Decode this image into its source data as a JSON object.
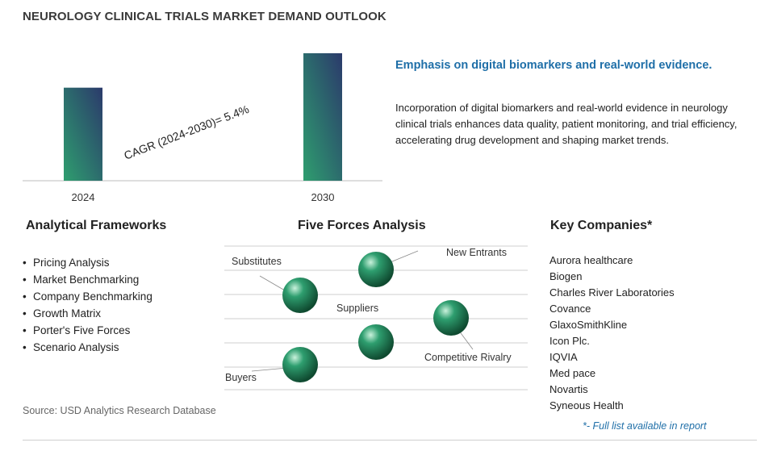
{
  "page": {
    "title": "NEUROLOGY CLINICAL TRIALS MARKET DEMAND OUTLOOK",
    "source": "Source: USD Analytics Research Database"
  },
  "chart_data": {
    "type": "bar",
    "categories": [
      "2024",
      "2030"
    ],
    "values": [
      1.0,
      1.37
    ],
    "annotation": "CAGR (2024-2030)=  5.4%",
    "grid": false,
    "bar_gradient": [
      "#2e9e6f",
      "#2b3a6b"
    ]
  },
  "highlight": {
    "heading": "Emphasis on digital biomarkers and real-world evidence.",
    "text": "Incorporation of digital biomarkers and real-world evidence in neurology clinical trials enhances data quality, patient monitoring, and trial efficiency, accelerating drug development and shaping market trends."
  },
  "frameworks": {
    "heading": "Analytical Frameworks",
    "items": [
      "Pricing Analysis",
      "Market Benchmarking",
      "Company Benchmarking",
      "Growth Matrix",
      "Porter's Five Forces",
      "Scenario Analysis"
    ]
  },
  "five_forces": {
    "heading": "Five Forces Analysis",
    "labels": {
      "new_entrants": "New Entrants",
      "substitutes": "Substitutes",
      "suppliers": "Suppliers",
      "competitive_rivalry": "Competitive Rivalry",
      "buyers": "Buyers"
    },
    "sphere_color": "#2e9e6f"
  },
  "companies": {
    "heading": "Key Companies*",
    "items": [
      "Aurora healthcare",
      "Biogen",
      "Charles River Laboratories",
      "Covance",
      "GlaxoSmithKline",
      "Icon Plc.",
      "IQVIA",
      "Med pace",
      "Novartis",
      "Syneous Health"
    ],
    "note": "*- Full list available in report"
  }
}
